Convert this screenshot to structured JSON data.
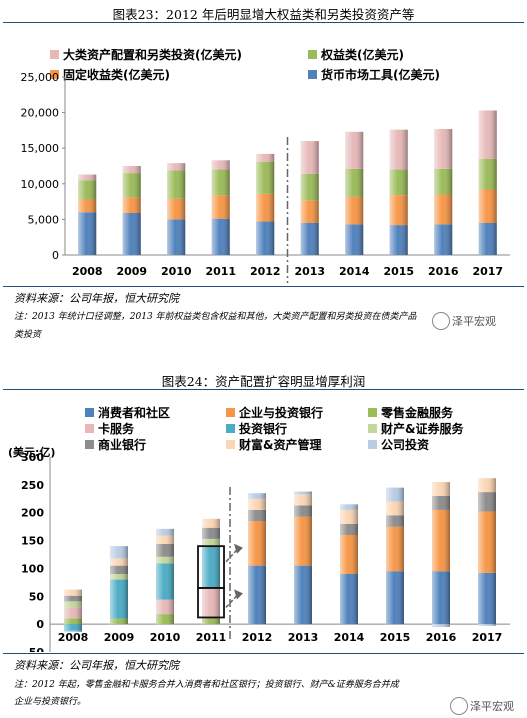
{
  "figure1": {
    "title": "图表23：2012 年后明显增大权益类和另类投资资产等",
    "source": "资料来源：公司年报，恒大研究院",
    "note_lines": [
      "注：2013 年统计口径调整，2013 年前权益类包含权益和其他，大类资产配置和另类投资在债类产品",
      "类投资"
    ]
  },
  "figure2": {
    "title": "图表24：资产配置扩容明显增厚利润",
    "source": "资料来源：公司年报，恒大研究院",
    "note_lines": [
      "注：2012 年起，零售金融和卡服务合并入消费者和社区银行；投资银行、财产&证券服务合并成",
      "企业与投资银行。"
    ]
  },
  "watermark": {
    "text1": "泽平宏观",
    "text2": "泽平宏观"
  },
  "chart_data": [
    {
      "type": "bar",
      "stacked": true,
      "categories": [
        "2008",
        "2009",
        "2010",
        "2011",
        "2012",
        "2013",
        "2014",
        "2015",
        "2016",
        "2017"
      ],
      "series": [
        {
          "name": "货币市场工具(亿美元)",
          "color": "#4f81bd",
          "values": [
            6000,
            5900,
            5000,
            5100,
            4700,
            4500,
            4300,
            4200,
            4300,
            4500
          ]
        },
        {
          "name": "固定收益类(亿美元)",
          "color": "#f79646",
          "values": [
            1800,
            2200,
            2900,
            3300,
            3900,
            3200,
            3900,
            4200,
            4200,
            4700
          ]
        },
        {
          "name": "权益类(亿美元)",
          "color": "#9bbb59",
          "values": [
            2700,
            3400,
            4000,
            3600,
            4500,
            3700,
            3900,
            3600,
            3600,
            4300
          ]
        },
        {
          "name": "大类资产配置和另类投资(亿美元)",
          "color": "#e6b9b8",
          "values": [
            800,
            1000,
            1000,
            1300,
            1100,
            4600,
            5200,
            5600,
            5600,
            6800
          ]
        }
      ],
      "ylim": [
        0,
        25000
      ],
      "yticks": [
        0,
        5000,
        10000,
        15000,
        20000,
        25000
      ],
      "ytick_labels": [
        "0",
        "5,000",
        "10,000",
        "15,000",
        "20,000",
        "25,000"
      ],
      "divider_after": "2012"
    },
    {
      "type": "bar",
      "stacked": true,
      "ylabel": "(美元:亿)",
      "categories": [
        "2008",
        "2009",
        "2010",
        "2011",
        "2012",
        "2013",
        "2014",
        "2015",
        "2016",
        "2017"
      ],
      "ylim": [
        -50,
        300
      ],
      "yticks": [
        -50,
        0,
        50,
        100,
        150,
        200,
        250,
        300
      ],
      "ytick_labels": [
        "-50",
        "0",
        "50",
        "100",
        "150",
        "200",
        "250",
        "300"
      ],
      "series": [
        {
          "name": "消费者和社区",
          "color": "#4f81bd",
          "values": [
            0,
            0,
            0,
            0,
            105,
            105,
            90,
            95,
            95,
            92
          ]
        },
        {
          "name": "企业与投资银行",
          "color": "#f79646",
          "values": [
            0,
            0,
            0,
            0,
            80,
            88,
            70,
            80,
            110,
            110
          ]
        },
        {
          "name": "零售金融服务",
          "color": "#9bbb59",
          "values": [
            10,
            10,
            18,
            12,
            0,
            0,
            0,
            0,
            0,
            0
          ]
        },
        {
          "name": "卡服务",
          "color": "#e6b9b8",
          "values": [
            20,
            0,
            26,
            52,
            0,
            0,
            0,
            0,
            0,
            0
          ]
        },
        {
          "name": "投资银行",
          "color": "#4bacc6",
          "values": [
            -12,
            70,
            65,
            75,
            0,
            0,
            0,
            0,
            0,
            0
          ]
        },
        {
          "name": "财产&证券服务",
          "color": "#c3d69b",
          "values": [
            11,
            10,
            12,
            14,
            0,
            0,
            0,
            0,
            0,
            0
          ]
        },
        {
          "name": "商业银行",
          "color": "#8c8c8c",
          "values": [
            10,
            15,
            23,
            20,
            20,
            20,
            20,
            20,
            25,
            35
          ]
        },
        {
          "name": "财富&资产管理",
          "color": "#fcd5b4",
          "values": [
            11,
            13,
            15,
            16,
            20,
            20,
            25,
            25,
            25,
            25
          ]
        },
        {
          "name": "公司投资",
          "color": "#b8cce4",
          "values": [
            -2,
            22,
            12,
            0,
            10,
            5,
            10,
            25,
            -5,
            -3
          ]
        }
      ]
    }
  ]
}
